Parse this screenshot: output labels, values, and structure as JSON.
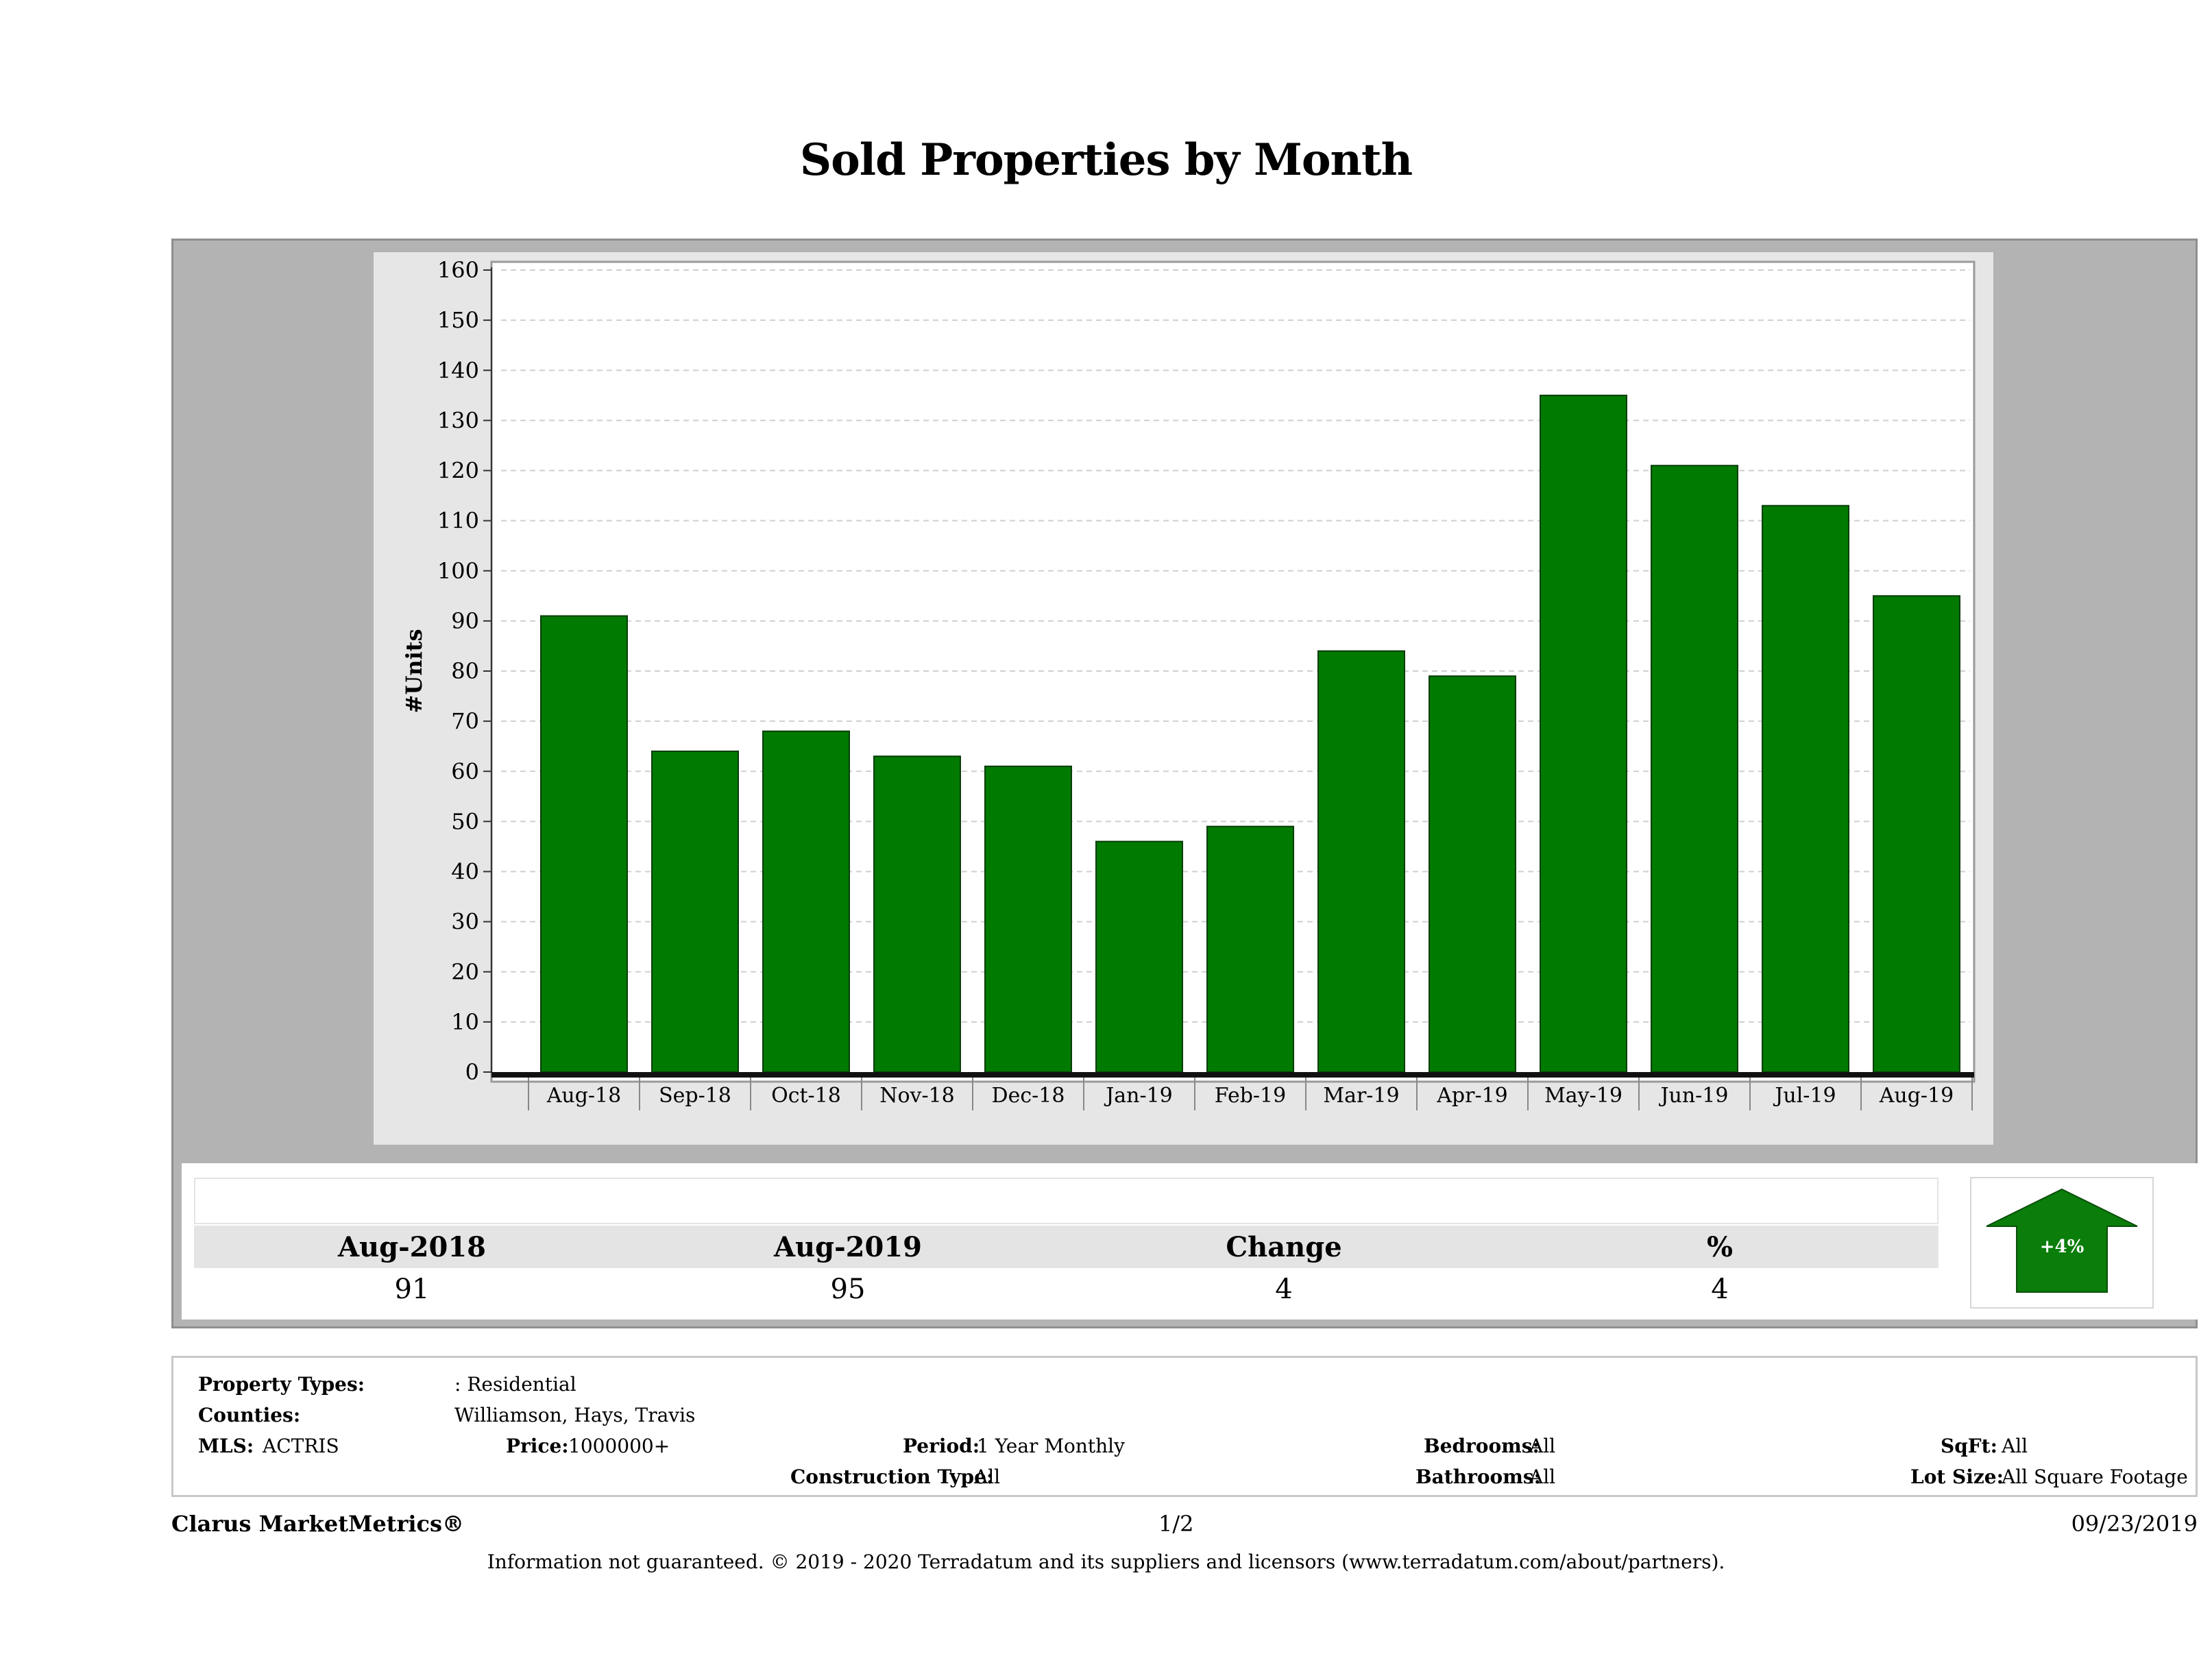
{
  "page": {
    "title": "Sold Properties by Month"
  },
  "chart_data": {
    "type": "bar",
    "title": "Sold Properties by Month",
    "ylabel": "#Units",
    "xlabel": "",
    "categories": [
      "Aug-18",
      "Sep-18",
      "Oct-18",
      "Nov-18",
      "Dec-18",
      "Jan-19",
      "Feb-19",
      "Mar-19",
      "Apr-19",
      "May-19",
      "Jun-19",
      "Jul-19",
      "Aug-19"
    ],
    "values": [
      91,
      64,
      68,
      63,
      61,
      46,
      49,
      84,
      79,
      135,
      121,
      113,
      95
    ],
    "ylim": [
      0,
      160
    ],
    "yticks": [
      0,
      10,
      20,
      30,
      40,
      50,
      60,
      70,
      80,
      90,
      100,
      110,
      120,
      130,
      140,
      150,
      160
    ],
    "grid": true,
    "legend": "none",
    "bar_color": "#007a00"
  },
  "stats": {
    "headers": [
      "Aug-2018",
      "Aug-2019",
      "Change",
      "%"
    ],
    "values": [
      "91",
      "95",
      "4",
      "4"
    ],
    "badge": "+4%",
    "badge_color": "#0a7d0a"
  },
  "details": {
    "property_types_label": "Property Types:",
    "property_types_value": ": Residential",
    "counties_label": "Counties:",
    "counties_value": "Williamson, Hays, Travis",
    "mls_label": "MLS:",
    "mls_value": "ACTRIS",
    "price_label": "Price:",
    "price_value": "1000000+",
    "period_label": "Period:",
    "period_value": "1 Year Monthly",
    "construction_label": "Construction Type:",
    "construction_value": "All",
    "bedrooms_label": "Bedrooms:",
    "bedrooms_value": "All",
    "bathrooms_label": "Bathrooms:",
    "bathrooms_value": "All",
    "sqft_label": "SqFt:",
    "sqft_value": "All",
    "lotsize_label": "Lot Size:",
    "lotsize_value": "All Square Footage"
  },
  "footer": {
    "brand": "Clarus MarketMetrics®",
    "page": "1/2",
    "date": "09/23/2019",
    "disclaimer": "Information not guaranteed. © 2019 - 2020 Terradatum and its suppliers and licensors (www.terradatum.com/about/partners)."
  }
}
